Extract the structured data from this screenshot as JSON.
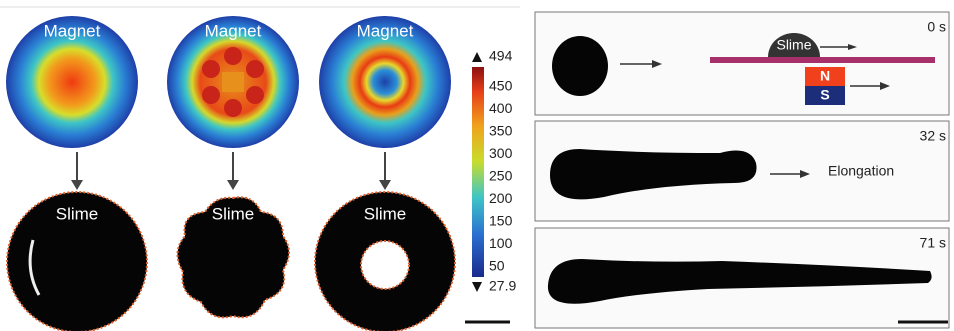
{
  "left": {
    "magnets": [
      "Magnet",
      "Magnet",
      "Magnet"
    ],
    "slimes": [
      "Slime",
      "Slime",
      "Slime"
    ]
  },
  "colorbar": {
    "max": 494,
    "min": 27.9,
    "ticks": [
      450,
      400,
      350,
      300,
      250,
      200,
      150,
      100,
      50
    ]
  },
  "right": {
    "panels": [
      {
        "time": "0 s",
        "slime": "Slime",
        "north": "N",
        "south": "S"
      },
      {
        "time": "32 s",
        "label": "Elongation"
      },
      {
        "time": "71 s"
      }
    ]
  }
}
